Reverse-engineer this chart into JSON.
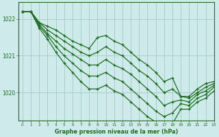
{
  "title": "Graphe pression niveau de la mer (hPa)",
  "bg_color": "#ceeaea",
  "grid_color": "#aacccc",
  "line_color": "#1a6e1a",
  "xlim": [
    -0.5,
    23
  ],
  "ylim": [
    1019.25,
    1022.45
  ],
  "yticks": [
    1020,
    1021,
    1022
  ],
  "xticks": [
    0,
    1,
    2,
    3,
    4,
    5,
    6,
    7,
    8,
    9,
    10,
    11,
    12,
    13,
    14,
    15,
    16,
    17,
    18,
    19,
    20,
    21,
    22,
    23
  ],
  "series": [
    [
      1022.2,
      1022.2,
      1021.9,
      1021.8,
      1021.7,
      1021.55,
      1021.4,
      1021.3,
      1021.2,
      1021.5,
      1021.55,
      1021.4,
      1021.3,
      1021.1,
      1020.9,
      1020.75,
      1020.55,
      1020.3,
      1020.4,
      1019.9,
      1019.9,
      1020.1,
      1020.25,
      1020.3
    ],
    [
      1022.2,
      1022.2,
      1021.9,
      1021.7,
      1021.55,
      1021.4,
      1021.25,
      1021.1,
      1021.0,
      1021.1,
      1021.25,
      1021.1,
      1021.0,
      1020.8,
      1020.6,
      1020.45,
      1020.25,
      1020.0,
      1020.1,
      1019.9,
      1019.85,
      1020.0,
      1020.15,
      1020.25
    ],
    [
      1022.2,
      1022.2,
      1021.85,
      1021.6,
      1021.4,
      1021.2,
      1021.05,
      1020.9,
      1020.75,
      1020.75,
      1020.9,
      1020.75,
      1020.65,
      1020.5,
      1020.3,
      1020.1,
      1019.9,
      1019.65,
      1019.75,
      1019.8,
      1019.75,
      1019.95,
      1020.05,
      1020.2
    ],
    [
      1022.2,
      1022.2,
      1021.8,
      1021.55,
      1021.25,
      1021.0,
      1020.8,
      1020.6,
      1020.45,
      1020.45,
      1020.55,
      1020.4,
      1020.3,
      1020.1,
      1019.9,
      1019.7,
      1019.5,
      1019.35,
      1019.45,
      1019.7,
      1019.65,
      1019.85,
      1019.95,
      1020.15
    ],
    [
      1022.2,
      1022.2,
      1021.75,
      1021.45,
      1021.1,
      1020.8,
      1020.55,
      1020.3,
      1020.1,
      1020.1,
      1020.2,
      1020.05,
      1019.95,
      1019.75,
      1019.55,
      1019.35,
      1019.2,
      1018.95,
      1019.15,
      1019.55,
      1019.55,
      1019.75,
      1019.85,
      1020.05
    ]
  ]
}
